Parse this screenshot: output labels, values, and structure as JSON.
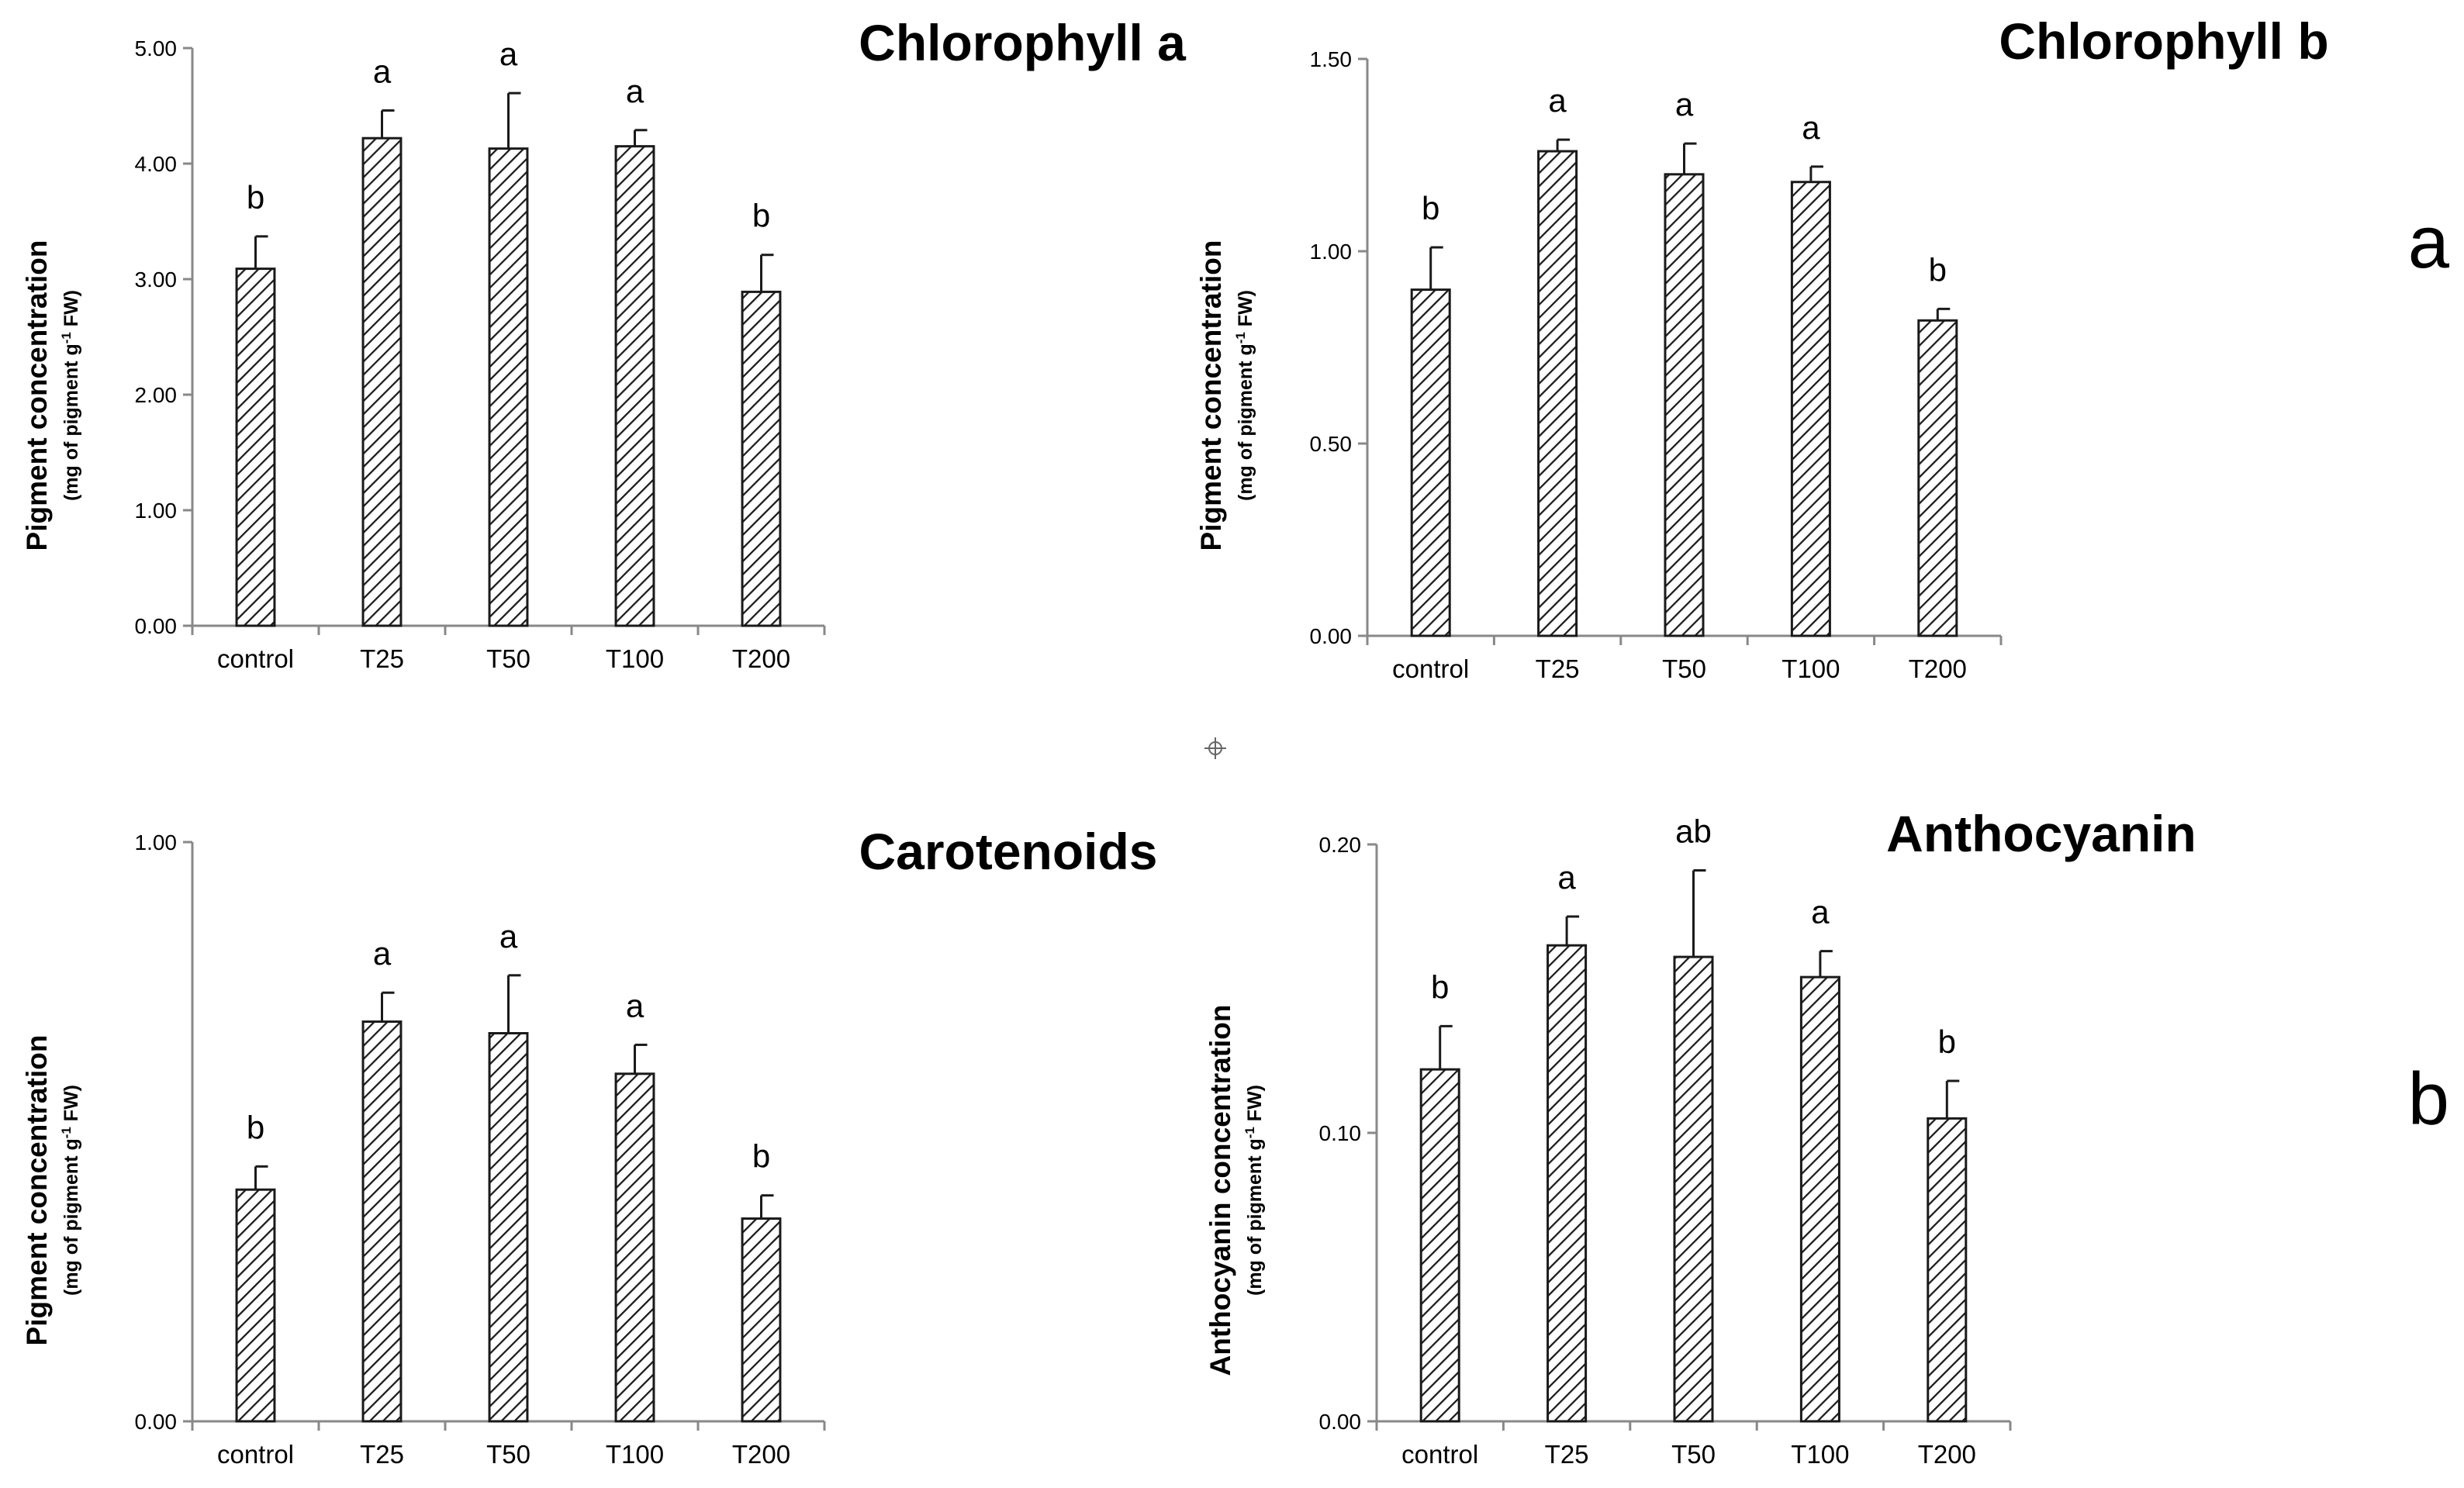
{
  "figure": {
    "panel_labels": [
      "a",
      "b"
    ]
  },
  "chart_data": [
    {
      "type": "bar",
      "title": "Chlorophyll a",
      "ylabel": "Pigment concentration",
      "ylabel_sub_pre": "(mg of pigment g",
      "ylabel_sub_sup": "-1",
      "ylabel_sub_post": " FW)",
      "categories": [
        "control",
        "T25",
        "T50",
        "T100",
        "T200"
      ],
      "values": [
        3.09,
        4.22,
        4.13,
        4.15,
        2.89
      ],
      "errors": [
        0.28,
        0.24,
        0.48,
        0.14,
        0.32
      ],
      "significance": [
        "b",
        "a",
        "a",
        "a",
        "b"
      ],
      "ylim": [
        0,
        5
      ],
      "yticks": [
        0,
        1,
        2,
        3,
        4,
        5
      ],
      "ytick_labels": [
        "0.00",
        "1.00",
        "2.00",
        "3.00",
        "4.00",
        "5.00"
      ],
      "fill": "diagonal-hatch",
      "bar_color": "#1a1a1a",
      "grid": false,
      "legend": "none"
    },
    {
      "type": "bar",
      "title": "Chlorophyll b",
      "ylabel": "Pigment concentration",
      "ylabel_sub_pre": "(mg of pigment g",
      "ylabel_sub_sup": "-1",
      "ylabel_sub_post": " FW)",
      "categories": [
        "control",
        "T25",
        "T50",
        "T100",
        "T200"
      ],
      "values": [
        0.9,
        1.26,
        1.2,
        1.18,
        0.82
      ],
      "errors": [
        0.11,
        0.03,
        0.08,
        0.04,
        0.03
      ],
      "significance": [
        "b",
        "a",
        "a",
        "a",
        "b"
      ],
      "ylim": [
        0,
        1.5
      ],
      "yticks": [
        0,
        0.5,
        1,
        1.5
      ],
      "ytick_labels": [
        "0.00",
        "0.50",
        "1.00",
        "1.50"
      ],
      "fill": "diagonal-hatch",
      "bar_color": "#1a1a1a",
      "grid": false,
      "legend": "none"
    },
    {
      "type": "bar",
      "title": "Carotenoids",
      "ylabel": "Pigment concentration",
      "ylabel_sub_pre": "(mg of pigment g",
      "ylabel_sub_sup": "-1",
      "ylabel_sub_post": " FW)",
      "categories": [
        "control",
        "T25",
        "T50",
        "T100",
        "T200"
      ],
      "values": [
        0.4,
        0.69,
        0.67,
        0.6,
        0.35
      ],
      "errors": [
        0.04,
        0.05,
        0.1,
        0.05,
        0.04
      ],
      "significance": [
        "b",
        "a",
        "a",
        "a",
        "b"
      ],
      "ylim": [
        0,
        1
      ],
      "yticks": [
        0,
        1
      ],
      "ytick_labels": [
        "0.00",
        "1.00"
      ],
      "fill": "diagonal-hatch",
      "bar_color": "#1a1a1a",
      "grid": false,
      "legend": "none"
    },
    {
      "type": "bar",
      "title": "Anthocyanin",
      "ylabel": "Anthocyanin concentration",
      "ylabel_sub_pre": "(mg of pigment g",
      "ylabel_sub_sup": "-1",
      "ylabel_sub_post": " FW)",
      "categories": [
        "control",
        "T25",
        "T50",
        "T100",
        "T200"
      ],
      "values": [
        0.122,
        0.165,
        0.161,
        0.154,
        0.105
      ],
      "errors": [
        0.015,
        0.01,
        0.03,
        0.009,
        0.013
      ],
      "significance": [
        "b",
        "a",
        "ab",
        "a",
        "b"
      ],
      "ylim": [
        0,
        0.2
      ],
      "yticks": [
        0,
        0.1,
        0.2
      ],
      "ytick_labels": [
        "0.00",
        "0.10",
        "0.20"
      ],
      "fill": "diagonal-hatch",
      "bar_color": "#1a1a1a",
      "grid": false,
      "legend": "none"
    }
  ]
}
